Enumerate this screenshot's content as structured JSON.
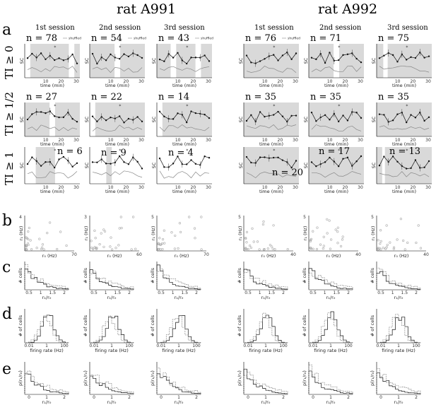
{
  "titles": {
    "left": "rat A991",
    "right": "rat A992"
  },
  "panels": {
    "a": "a",
    "b": "b",
    "c": "c",
    "d": "d",
    "e": "e"
  },
  "sessions": [
    "1st session",
    "2nd session",
    "3rd session",
    "1st session",
    "2nd session",
    "3rd session"
  ],
  "ti_rows": [
    "TI ≥ 0",
    "TI ≥ 1/2",
    "TI ≥ 1"
  ],
  "n_values": [
    [
      "n = 78",
      "n = 54",
      "n = 43",
      "n = 76",
      "n = 71",
      "n = 75"
    ],
    [
      "n = 27",
      "n = 22",
      "n = 14",
      "n = 35",
      "n = 35",
      "n = 35"
    ],
    [
      "n = 6",
      "n = 9",
      "n = 4",
      "n = 20",
      "n = 17",
      "n = 13"
    ]
  ],
  "labels": {
    "sc": "SC",
    "time": "time (min)",
    "shuffled": "shuffled",
    "star": "*",
    "r1": "r₁ (Hz)",
    "r0": "r₀ (Hz)",
    "cells": "# cells",
    "ratio": "r₁/r₀",
    "ofcells": "# of cells",
    "firing": "firing rate (Hz)",
    "prob": "p(r₁/r₀)"
  },
  "a_xticks": [
    "10",
    "20",
    "30"
  ],
  "b_axes": {
    "xmax": [
      "70",
      "60",
      "70",
      "40",
      "40",
      "40"
    ],
    "ymax": [
      "4",
      "3",
      "5",
      "5",
      "5",
      "5"
    ]
  },
  "c_xticks": [
    "0.5",
    "1",
    "1.5",
    "2"
  ],
  "d_xticks": [
    "0.01",
    "1",
    "100"
  ],
  "e_xticks": [
    "0",
    "1",
    "2"
  ],
  "colors": {
    "shade": "#d9d9d9",
    "line": "#111111",
    "shuffled": "#888888",
    "scatter": "#aaaaaa"
  }
}
